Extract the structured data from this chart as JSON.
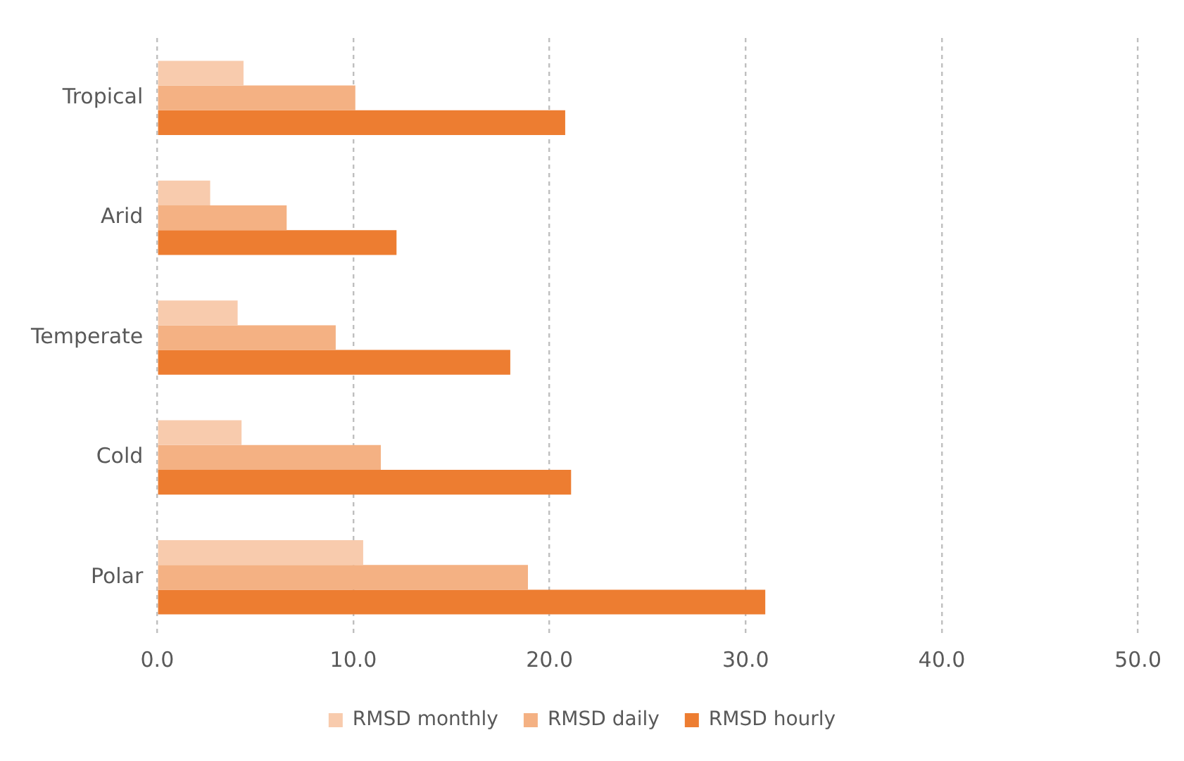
{
  "chart_data": {
    "type": "bar",
    "orientation": "horizontal",
    "categories": [
      "Tropical",
      "Arid",
      "Temperate",
      "Cold",
      "Polar"
    ],
    "series": [
      {
        "name": "RMSD monthly",
        "color": "#f8cbad",
        "values": [
          4.4,
          2.7,
          4.1,
          4.3,
          10.5
        ]
      },
      {
        "name": "RMSD daily",
        "color": "#f4b183",
        "values": [
          10.1,
          6.6,
          9.1,
          11.4,
          18.9
        ]
      },
      {
        "name": "RMSD hourly",
        "color": "#ed7d31",
        "values": [
          20.8,
          12.2,
          18.0,
          21.1,
          31.0
        ]
      }
    ],
    "xlim": [
      0,
      50
    ],
    "xticks": [
      {
        "value": 0,
        "label": "0.0"
      },
      {
        "value": 10,
        "label": "10.0"
      },
      {
        "value": 20,
        "label": "20.0"
      },
      {
        "value": 30,
        "label": "30.0"
      },
      {
        "value": 40,
        "label": "40.0"
      },
      {
        "value": 50,
        "label": "50.0"
      }
    ],
    "grid": "x",
    "legend": "bottom"
  }
}
